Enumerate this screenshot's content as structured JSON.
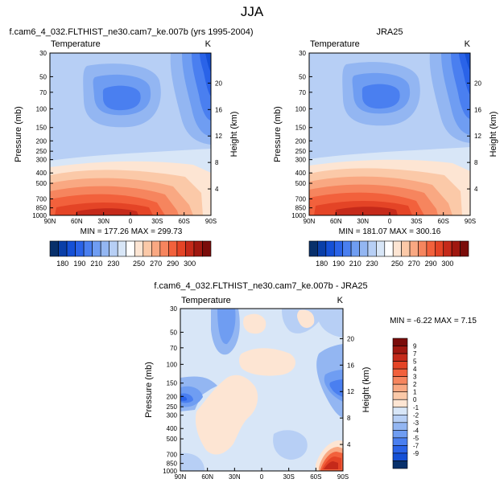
{
  "page_title": "JJA",
  "chart_data": [
    {
      "type": "heatmap",
      "title": "f.cam6_4_032.FLTHIST_ne30.cam7_ke.007b (yrs 1995-2004)",
      "subtitle_left": "Temperature",
      "subtitle_right": "K",
      "ylabel": "Pressure (mb)",
      "y2label": "Height (km)",
      "x_ticks": [
        "90N",
        "60N",
        "30N",
        "0",
        "30S",
        "60S",
        "90S"
      ],
      "y_ticks": [
        "30",
        "50",
        "70",
        "100",
        "150",
        "200",
        "250",
        "300",
        "400",
        "500",
        "700",
        "850",
        "1000"
      ],
      "y2_ticks": [
        "20",
        "16",
        "12",
        "8",
        "4"
      ],
      "minmax": "MIN = 177.26   MAX = 299.73",
      "min": 177.26,
      "max": 299.73
    },
    {
      "type": "heatmap",
      "title": "JRA25",
      "subtitle_left": "Temperature",
      "subtitle_right": "K",
      "ylabel": "Pressure (mb)",
      "y2label": "Height (km)",
      "x_ticks": [
        "90N",
        "60N",
        "30N",
        "0",
        "30S",
        "60S",
        "90S"
      ],
      "y_ticks": [
        "30",
        "50",
        "70",
        "100",
        "150",
        "200",
        "250",
        "300",
        "400",
        "500",
        "700",
        "850",
        "1000"
      ],
      "y2_ticks": [
        "20",
        "16",
        "12",
        "8",
        "4"
      ],
      "minmax": "MIN = 181.07   MAX = 300.16",
      "min": 181.07,
      "max": 300.16
    },
    {
      "type": "heatmap",
      "title": "f.cam6_4_032.FLTHIST_ne30.cam7_ke.007b - JRA25",
      "subtitle_left": "Temperature",
      "subtitle_right": "K",
      "ylabel": "Pressure (mb)",
      "y2label": "Height (km)",
      "x_ticks": [
        "90N",
        "60N",
        "30N",
        "0",
        "30S",
        "60S",
        "90S"
      ],
      "y_ticks": [
        "30",
        "50",
        "70",
        "100",
        "150",
        "200",
        "250",
        "300",
        "400",
        "500",
        "700",
        "850",
        "1000"
      ],
      "y2_ticks": [
        "20",
        "16",
        "12",
        "8",
        "4"
      ],
      "minmax": "MIN = -6.22   MAX =  7.15",
      "min": -6.22,
      "max": 7.15
    }
  ],
  "colorbar_abs": {
    "labels": [
      "180",
      "190",
      "210",
      "230",
      "250",
      "270",
      "290",
      "300"
    ],
    "colors": [
      "#08306b",
      "#0a3fa8",
      "#1550d6",
      "#2a63e8",
      "#4a7ff0",
      "#6f9df2",
      "#93b6f2",
      "#b7cff5",
      "#d8e6f7",
      "#ffffff",
      "#fde5d3",
      "#fbc9a8",
      "#f9a882",
      "#f6855e",
      "#f2613c",
      "#e44426",
      "#c52a1a",
      "#a01810",
      "#7a0c0a"
    ]
  },
  "colorbar_diff": {
    "labels": [
      "9",
      "7",
      "5",
      "4",
      "3",
      "2",
      "1",
      "0",
      "-1",
      "-2",
      "-3",
      "-4",
      "-5",
      "-7",
      "-9"
    ],
    "colors": [
      "#7a0c0a",
      "#a01810",
      "#c52a1a",
      "#e44426",
      "#f2613c",
      "#f6855e",
      "#f9a882",
      "#fbc9a8",
      "#fde5d3",
      "#d8e6f7",
      "#b7cff5",
      "#93b6f2",
      "#6f9df2",
      "#4a7ff0",
      "#2a63e8",
      "#1550d6",
      "#08306b"
    ]
  }
}
